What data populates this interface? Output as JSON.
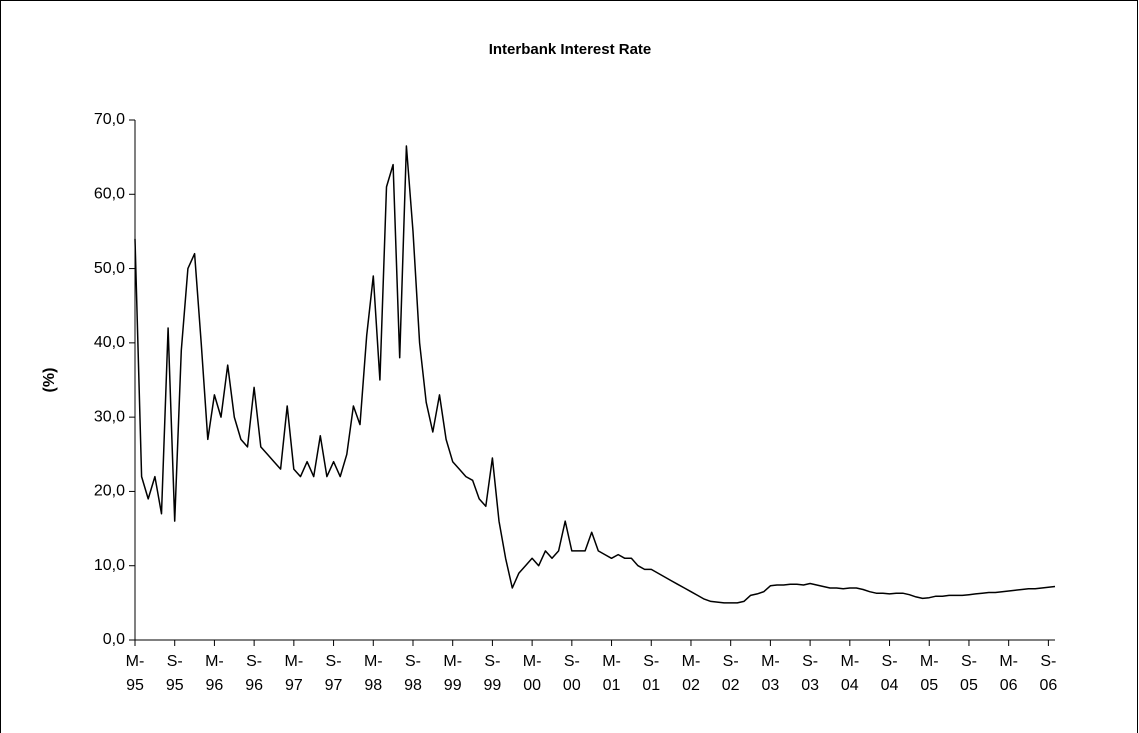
{
  "chart_data": {
    "type": "line",
    "title": "Interbank Interest Rate",
    "y_label": "(%)",
    "x": [
      "1995-03",
      "1995-04",
      "1995-05",
      "1995-06",
      "1995-07",
      "1995-08",
      "1995-09",
      "1995-10",
      "1995-11",
      "1995-12",
      "1996-01",
      "1996-02",
      "1996-03",
      "1996-04",
      "1996-05",
      "1996-06",
      "1996-07",
      "1996-08",
      "1996-09",
      "1996-10",
      "1996-11",
      "1996-12",
      "1997-01",
      "1997-02",
      "1997-03",
      "1997-04",
      "1997-05",
      "1997-06",
      "1997-07",
      "1997-08",
      "1997-09",
      "1997-10",
      "1997-11",
      "1997-12",
      "1998-01",
      "1998-02",
      "1998-03",
      "1998-04",
      "1998-05",
      "1998-06",
      "1998-07",
      "1998-08",
      "1998-09",
      "1998-10",
      "1998-11",
      "1998-12",
      "1999-01",
      "1999-02",
      "1999-03",
      "1999-04",
      "1999-05",
      "1999-06",
      "1999-07",
      "1999-08",
      "1999-09",
      "1999-10",
      "1999-11",
      "1999-12",
      "2000-01",
      "2000-02",
      "2000-03",
      "2000-04",
      "2000-05",
      "2000-06",
      "2000-07",
      "2000-08",
      "2000-09",
      "2000-10",
      "2000-11",
      "2000-12",
      "2001-01",
      "2001-02",
      "2001-03",
      "2001-04",
      "2001-05",
      "2001-06",
      "2001-07",
      "2001-08",
      "2001-09",
      "2001-10",
      "2001-11",
      "2001-12",
      "2002-01",
      "2002-02",
      "2002-03",
      "2002-04",
      "2002-05",
      "2002-06",
      "2002-07",
      "2002-08",
      "2002-09",
      "2002-10",
      "2002-11",
      "2002-12",
      "2003-01",
      "2003-02",
      "2003-03",
      "2003-04",
      "2003-05",
      "2003-06",
      "2003-07",
      "2003-08",
      "2003-09",
      "2003-10",
      "2003-11",
      "2003-12",
      "2004-01",
      "2004-02",
      "2004-03",
      "2004-04",
      "2004-05",
      "2004-06",
      "2004-07",
      "2004-08",
      "2004-09",
      "2004-10",
      "2004-11",
      "2004-12",
      "2005-01",
      "2005-02",
      "2005-03",
      "2005-04",
      "2005-05",
      "2005-06",
      "2005-07",
      "2005-08",
      "2005-09",
      "2005-10",
      "2005-11",
      "2005-12",
      "2006-01",
      "2006-02",
      "2006-03",
      "2006-04",
      "2006-05",
      "2006-06",
      "2006-07",
      "2006-08",
      "2006-09",
      "2006-10"
    ],
    "series": [
      {
        "color": "#000000",
        "values": [
          54,
          22,
          19,
          22,
          17,
          42,
          16,
          39,
          50,
          52,
          40,
          27,
          33,
          30,
          37,
          30,
          27,
          26,
          34,
          26,
          25,
          24,
          23,
          31.5,
          23,
          22,
          24,
          22,
          27.5,
          22,
          24,
          22,
          25,
          31.5,
          29,
          41,
          49,
          35,
          61,
          64,
          38,
          66.5,
          55,
          40,
          32,
          28,
          33,
          27,
          24,
          23,
          22,
          21.5,
          19,
          18,
          24.5,
          16,
          11,
          7,
          9,
          10,
          11,
          10,
          12,
          11,
          12,
          16,
          12,
          12,
          12,
          14.5,
          12,
          11.5,
          11,
          11.5,
          11,
          11,
          10,
          9.5,
          9.5,
          9,
          8.5,
          8,
          7.5,
          7,
          6.5,
          6,
          5.5,
          5.2,
          5.1,
          5,
          5,
          5,
          5.2,
          6,
          6.2,
          6.5,
          7.3,
          7.4,
          7.4,
          7.5,
          7.5,
          7.4,
          7.6,
          7.4,
          7.2,
          7,
          7,
          6.9,
          7,
          7,
          6.8,
          6.5,
          6.3,
          6.3,
          6.2,
          6.3,
          6.3,
          6.1,
          5.8,
          5.6,
          5.7,
          5.9,
          5.9,
          6,
          6,
          6,
          6.1,
          6.2,
          6.3,
          6.4,
          6.4,
          6.5,
          6.6,
          6.7,
          6.8,
          6.9,
          6.9,
          7,
          7.1,
          7.2
        ]
      }
    ],
    "xlim": [
      "1995-03",
      "2006-10"
    ],
    "xticks": [
      {
        "value": "1995-03",
        "label": [
          "M-",
          "95"
        ]
      },
      {
        "value": "1995-09",
        "label": [
          "S-",
          "95"
        ]
      },
      {
        "value": "1996-03",
        "label": [
          "M-",
          "96"
        ]
      },
      {
        "value": "1996-09",
        "label": [
          "S-",
          "96"
        ]
      },
      {
        "value": "1997-03",
        "label": [
          "M-",
          "97"
        ]
      },
      {
        "value": "1997-09",
        "label": [
          "S-",
          "97"
        ]
      },
      {
        "value": "1998-03",
        "label": [
          "M-",
          "98"
        ]
      },
      {
        "value": "1998-09",
        "label": [
          "S-",
          "98"
        ]
      },
      {
        "value": "1999-03",
        "label": [
          "M-",
          "99"
        ]
      },
      {
        "value": "1999-09",
        "label": [
          "S-",
          "99"
        ]
      },
      {
        "value": "2000-03",
        "label": [
          "M-",
          "00"
        ]
      },
      {
        "value": "2000-09",
        "label": [
          "S-",
          "00"
        ]
      },
      {
        "value": "2001-03",
        "label": [
          "M-",
          "01"
        ]
      },
      {
        "value": "2001-09",
        "label": [
          "S-",
          "01"
        ]
      },
      {
        "value": "2002-03",
        "label": [
          "M-",
          "02"
        ]
      },
      {
        "value": "2002-09",
        "label": [
          "S-",
          "02"
        ]
      },
      {
        "value": "2003-03",
        "label": [
          "M-",
          "03"
        ]
      },
      {
        "value": "2003-09",
        "label": [
          "S-",
          "03"
        ]
      },
      {
        "value": "2004-03",
        "label": [
          "M-",
          "04"
        ]
      },
      {
        "value": "2004-09",
        "label": [
          "S-",
          "04"
        ]
      },
      {
        "value": "2005-03",
        "label": [
          "M-",
          "05"
        ]
      },
      {
        "value": "2005-09",
        "label": [
          "S-",
          "05"
        ]
      },
      {
        "value": "2006-03",
        "label": [
          "M-",
          "06"
        ]
      },
      {
        "value": "2006-09",
        "label": [
          "S-",
          "06"
        ]
      }
    ],
    "ylim": [
      0,
      70
    ],
    "yticks": [
      {
        "value": 0,
        "label": "0,0"
      },
      {
        "value": 10,
        "label": "10,0"
      },
      {
        "value": 20,
        "label": "20,0"
      },
      {
        "value": 30,
        "label": "30,0"
      },
      {
        "value": 40,
        "label": "40,0"
      },
      {
        "value": 50,
        "label": "50,0"
      },
      {
        "value": 60,
        "label": "60,0"
      },
      {
        "value": 70,
        "label": "70,0"
      }
    ],
    "grid": false
  }
}
